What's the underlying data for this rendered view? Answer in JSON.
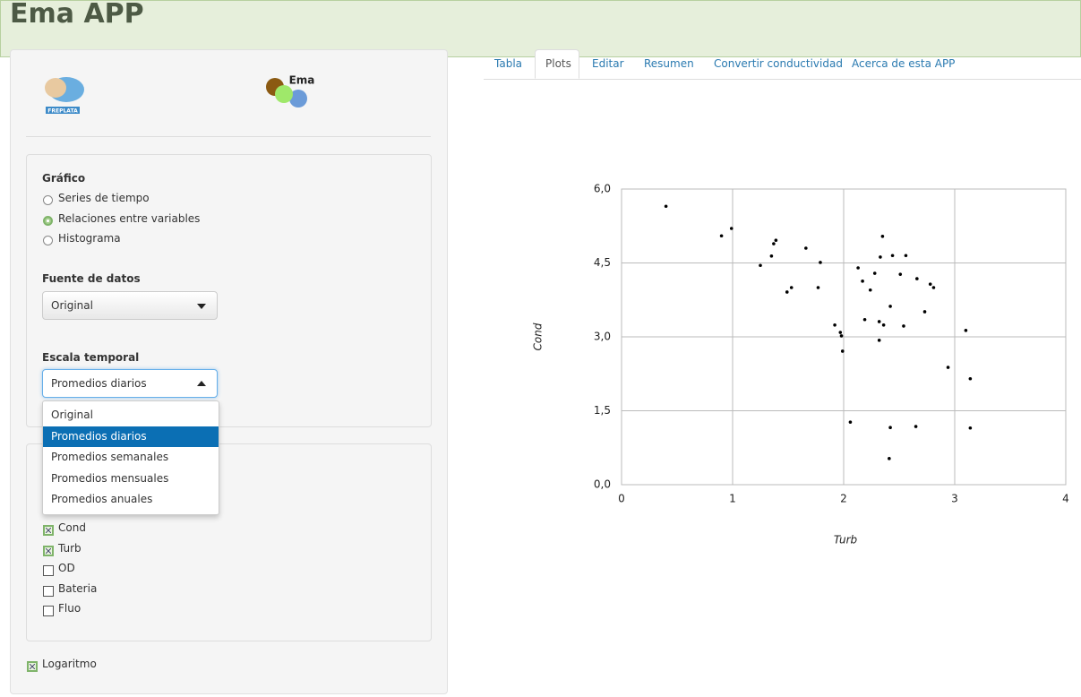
{
  "header": {
    "title": "Ema APP"
  },
  "logos": {
    "left": "FREPLATA",
    "right": "Ema"
  },
  "sidebar": {
    "chart_kind": {
      "label": "Gráfico",
      "options": [
        "Series de tiempo",
        "Relaciones entre variables",
        "Histograma"
      ],
      "selected": 1
    },
    "source": {
      "label": "Fuente de datos",
      "value": "Original"
    },
    "time_scale": {
      "label": "Escala temporal",
      "value": "Promedios diarios",
      "options": [
        "Original",
        "Promedios diarios",
        "Promedios semanales",
        "Promedios mensuales",
        "Promedios anuales"
      ],
      "highlighted": 1
    },
    "variables": [
      {
        "label": "Cond",
        "checked": true
      },
      {
        "label": "Turb",
        "checked": true
      },
      {
        "label": "OD",
        "checked": false
      },
      {
        "label": "Bateria",
        "checked": false
      },
      {
        "label": "Fluo",
        "checked": false
      }
    ],
    "log": {
      "label": "Logaritmo",
      "checked": true
    }
  },
  "tabs": {
    "items": [
      "Tabla",
      "Plots",
      "Editar",
      "Resumen",
      "Convertir conductividad",
      "Acerca de esta APP"
    ],
    "active": 1
  },
  "chart_data": {
    "type": "scatter",
    "x_label": "Turb",
    "y_label": "Cond",
    "xlim": [
      0,
      4
    ],
    "ylim": [
      0,
      6
    ],
    "xticks": [
      0,
      1,
      2,
      3,
      4
    ],
    "yticks": [
      {
        "value": 0,
        "label": "0,0"
      },
      {
        "value": 1.5,
        "label": "1,5"
      },
      {
        "value": 3,
        "label": "3,0"
      },
      {
        "value": 4.5,
        "label": "4,5"
      },
      {
        "value": 6,
        "label": "6,0"
      }
    ],
    "grid": true,
    "color": "#000000",
    "x": [
      0.4,
      0.9,
      0.99,
      1.25,
      1.35,
      1.37,
      1.39,
      1.49,
      1.53,
      1.66,
      1.77,
      1.79,
      1.92,
      1.97,
      1.98,
      1.99,
      2.06,
      2.13,
      2.17,
      2.19,
      2.24,
      2.28,
      2.32,
      2.32,
      2.33,
      2.35,
      2.36,
      2.42,
      2.42,
      2.41,
      2.44,
      2.51,
      2.54,
      2.56,
      2.65,
      2.66,
      2.73,
      2.78,
      2.81,
      2.94,
      3.1,
      3.14,
      3.14
    ],
    "y": [
      5.65,
      5.05,
      5.2,
      4.45,
      4.64,
      4.89,
      4.96,
      3.91,
      4.0,
      4.8,
      4.0,
      4.51,
      3.24,
      3.09,
      3.02,
      2.71,
      1.27,
      4.4,
      4.13,
      3.35,
      3.95,
      4.29,
      2.93,
      3.31,
      4.62,
      5.04,
      3.24,
      3.62,
      1.16,
      0.53,
      4.65,
      4.27,
      3.22,
      4.65,
      1.18,
      4.18,
      3.51,
      4.07,
      4.0,
      2.38,
      3.13,
      2.15,
      1.15
    ]
  }
}
